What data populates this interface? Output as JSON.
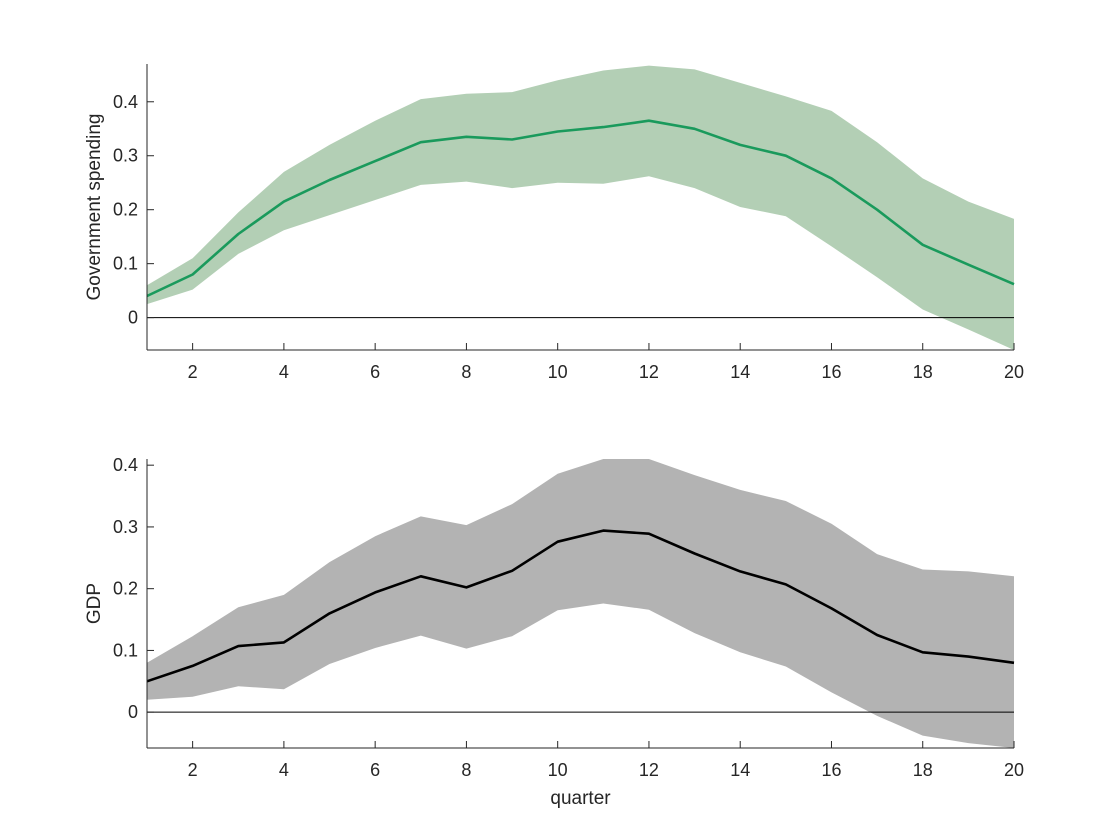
{
  "chart_data": [
    {
      "type": "line",
      "ylabel": "Government spending",
      "xlabel": "",
      "xlim": [
        1,
        20
      ],
      "ylim": [
        -0.06,
        0.47
      ],
      "xticks": [
        2,
        4,
        6,
        8,
        10,
        12,
        14,
        16,
        18,
        20
      ],
      "yticks": [
        0,
        0.1,
        0.2,
        0.3,
        0.4
      ],
      "ytick_labels": [
        "0",
        "0.1",
        "0.2",
        "0.3",
        "0.4"
      ],
      "zero_line": true,
      "grid": false,
      "line_color": "#1a9a5c",
      "band_color": "#b3cfb5",
      "x": [
        1,
        2,
        3,
        4,
        5,
        6,
        7,
        8,
        9,
        10,
        11,
        12,
        13,
        14,
        15,
        16,
        17,
        18,
        19,
        20
      ],
      "series": [
        {
          "values": [
            0.04,
            0.08,
            0.155,
            0.215,
            0.255,
            0.29,
            0.325,
            0.335,
            0.33,
            0.345,
            0.353,
            0.365,
            0.35,
            0.32,
            0.3,
            0.258,
            0.2,
            0.135,
            0.098,
            0.062
          ],
          "upper": [
            0.06,
            0.11,
            0.195,
            0.27,
            0.32,
            0.365,
            0.405,
            0.415,
            0.418,
            0.44,
            0.458,
            0.467,
            0.46,
            0.435,
            0.41,
            0.383,
            0.325,
            0.258,
            0.215,
            0.183
          ],
          "lower": [
            0.025,
            0.052,
            0.118,
            0.162,
            0.19,
            0.218,
            0.246,
            0.252,
            0.24,
            0.25,
            0.248,
            0.262,
            0.24,
            0.205,
            0.188,
            0.132,
            0.075,
            0.015,
            -0.022,
            -0.06
          ]
        }
      ]
    },
    {
      "type": "line",
      "ylabel": "GDP",
      "xlabel": "quarter",
      "xlim": [
        1,
        20
      ],
      "ylim": [
        -0.058,
        0.41
      ],
      "xticks": [
        2,
        4,
        6,
        8,
        10,
        12,
        14,
        16,
        18,
        20
      ],
      "yticks": [
        0,
        0.1,
        0.2,
        0.3,
        0.4
      ],
      "ytick_labels": [
        "0",
        "0.1",
        "0.2",
        "0.3",
        "0.4"
      ],
      "zero_line": true,
      "grid": false,
      "line_color": "#000000",
      "band_color": "#b3b3b3",
      "x": [
        1,
        2,
        3,
        4,
        5,
        6,
        7,
        8,
        9,
        10,
        11,
        12,
        13,
        14,
        15,
        16,
        17,
        18,
        19,
        20
      ],
      "series": [
        {
          "values": [
            0.05,
            0.075,
            0.107,
            0.113,
            0.16,
            0.194,
            0.22,
            0.202,
            0.229,
            0.276,
            0.294,
            0.289,
            0.257,
            0.228,
            0.207,
            0.168,
            0.125,
            0.097,
            0.09,
            0.08
          ],
          "upper": [
            0.08,
            0.123,
            0.17,
            0.19,
            0.243,
            0.285,
            0.317,
            0.303,
            0.337,
            0.386,
            0.41,
            0.41,
            0.384,
            0.36,
            0.342,
            0.305,
            0.256,
            0.231,
            0.228,
            0.22
          ],
          "lower": [
            0.02,
            0.025,
            0.042,
            0.037,
            0.078,
            0.104,
            0.124,
            0.103,
            0.123,
            0.165,
            0.176,
            0.166,
            0.128,
            0.097,
            0.074,
            0.032,
            -0.006,
            -0.038,
            -0.05,
            -0.058
          ]
        }
      ]
    }
  ]
}
